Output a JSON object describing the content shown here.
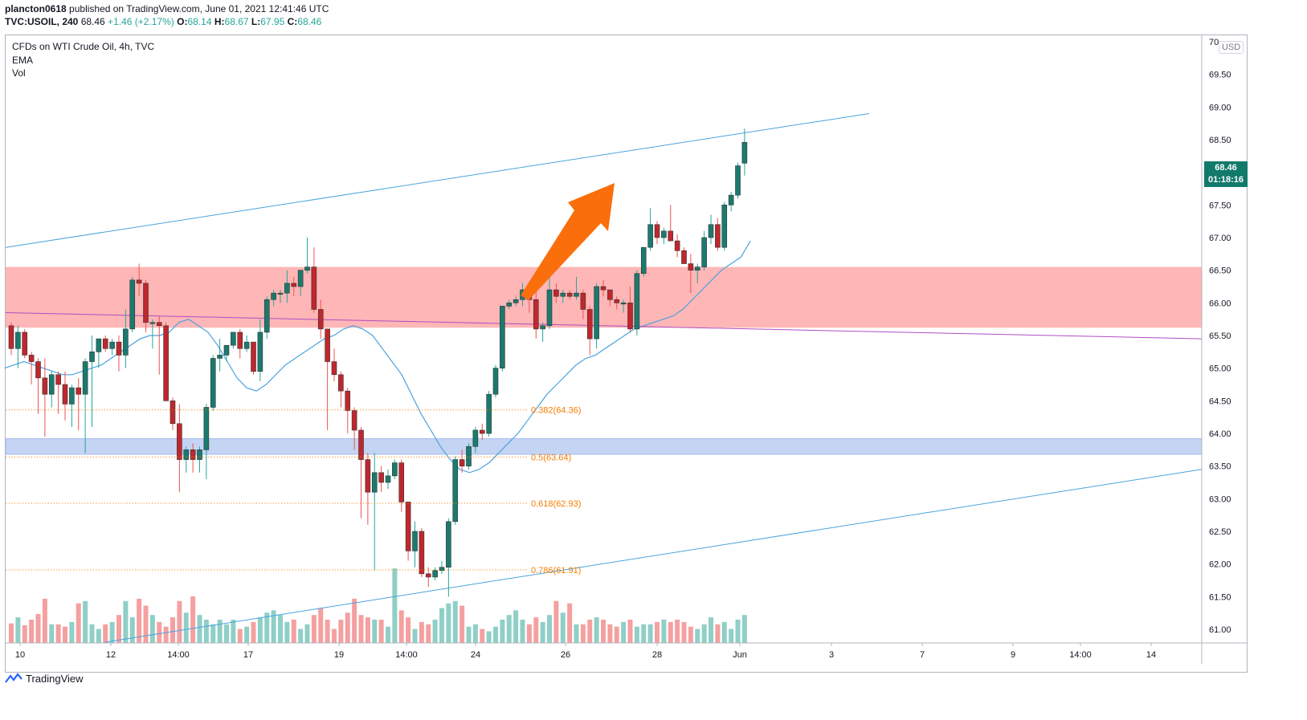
{
  "header": {
    "publisher": "plancton0618",
    "published_text": "published on TradingView.com, June 01, 2021 12:41:46 UTC",
    "symbol": "TVC:USOIL, 240",
    "last": "68.46",
    "change": "+1.46 (+2.17%)",
    "o_label": "O:",
    "o": "68.14",
    "h_label": "H:",
    "h": "68.67",
    "l_label": "L:",
    "l": "67.95",
    "c_label": "C:",
    "c": "68.46"
  },
  "legend": {
    "title": "CFDs on WTI Crude Oil, 4h, TVC",
    "ema": "EMA",
    "vol": "Vol"
  },
  "currency": "USD",
  "badge": {
    "price": "68.46",
    "countdown": "01:18:16"
  },
  "footer": {
    "brand": "TradingView"
  },
  "colors": {
    "up": "#26a69a",
    "down": "#ef5350",
    "up_vol": "#8fcfc7",
    "down_vol": "#f5a0a0",
    "channel": "#4aa3df",
    "resistance_zone": "#ffb6b6",
    "support_zone": "#c4d4f3",
    "ema": "#4aa3df",
    "trendline": "#b04dc4",
    "fib": "#f57c00",
    "arrow": "#fa6f0c"
  },
  "chart_data": {
    "type": "candlestick",
    "y_axis": {
      "range": [
        60.8,
        70.1
      ],
      "ticks": [
        "70.00",
        "69.50",
        "69.00",
        "68.50",
        "68.00",
        "67.50",
        "67.00",
        "66.50",
        "66.00",
        "65.50",
        "65.00",
        "64.50",
        "64.00",
        "63.50",
        "63.00",
        "62.50",
        "62.00",
        "61.50",
        "61.00"
      ],
      "top_label_partial": "70"
    },
    "x_axis": {
      "ticks": [
        "10",
        "12",
        "14:00",
        "17",
        "19",
        "14:00",
        "24",
        "26",
        "28",
        "Jun",
        "3",
        "7",
        "9",
        "14:00",
        "14"
      ]
    },
    "candles": [
      [
        65.65,
        65.7,
        65.2,
        65.3
      ],
      [
        65.3,
        65.65,
        65.0,
        65.55
      ],
      [
        65.55,
        65.6,
        65.15,
        65.2
      ],
      [
        65.2,
        65.25,
        64.75,
        65.1
      ],
      [
        65.1,
        65.15,
        64.3,
        64.85
      ],
      [
        64.85,
        65.15,
        63.95,
        64.6
      ],
      [
        64.6,
        64.95,
        64.4,
        64.9
      ],
      [
        64.9,
        64.95,
        64.3,
        64.75
      ],
      [
        64.75,
        64.95,
        64.2,
        64.45
      ],
      [
        64.45,
        64.75,
        64.1,
        64.7
      ],
      [
        64.7,
        64.85,
        64.05,
        64.6
      ],
      [
        64.6,
        65.15,
        63.7,
        65.1
      ],
      [
        65.1,
        65.5,
        64.1,
        65.25
      ],
      [
        65.25,
        65.45,
        65.0,
        65.45
      ],
      [
        65.45,
        65.5,
        65.25,
        65.3
      ],
      [
        65.3,
        65.45,
        65.2,
        65.4
      ],
      [
        65.4,
        65.5,
        64.95,
        65.2
      ],
      [
        65.2,
        65.9,
        65.0,
        65.6
      ],
      [
        65.6,
        66.4,
        65.55,
        66.35
      ],
      [
        66.35,
        66.6,
        66.1,
        66.3
      ],
      [
        66.3,
        66.35,
        65.55,
        65.7
      ],
      [
        65.7,
        65.75,
        65.3,
        65.7
      ],
      [
        65.7,
        65.8,
        64.9,
        65.65
      ],
      [
        65.65,
        65.7,
        64.5,
        64.5
      ],
      [
        64.5,
        64.55,
        64.05,
        64.15
      ],
      [
        64.15,
        64.45,
        63.1,
        63.6
      ],
      [
        63.6,
        63.8,
        63.4,
        63.75
      ],
      [
        63.75,
        63.85,
        63.4,
        63.6
      ],
      [
        63.6,
        63.8,
        63.4,
        63.75
      ],
      [
        63.75,
        64.45,
        63.3,
        64.4
      ],
      [
        64.4,
        65.2,
        64.35,
        65.15
      ],
      [
        65.15,
        65.45,
        64.95,
        65.2
      ],
      [
        65.2,
        65.35,
        65.1,
        65.35
      ],
      [
        65.35,
        65.55,
        65.3,
        65.55
      ],
      [
        65.55,
        65.6,
        65.15,
        65.3
      ],
      [
        65.3,
        65.5,
        65.25,
        65.4
      ],
      [
        65.4,
        65.4,
        64.9,
        64.95
      ],
      [
        64.95,
        65.75,
        64.8,
        65.55
      ],
      [
        65.55,
        66.1,
        65.45,
        66.05
      ],
      [
        66.05,
        66.2,
        65.95,
        66.15
      ],
      [
        66.15,
        66.2,
        66.0,
        66.15
      ],
      [
        66.15,
        66.5,
        66.0,
        66.3
      ],
      [
        66.3,
        66.4,
        66.1,
        66.25
      ],
      [
        66.25,
        66.45,
        66.1,
        66.5
      ],
      [
        66.5,
        67.0,
        66.45,
        66.55
      ],
      [
        66.55,
        66.85,
        65.85,
        65.9
      ],
      [
        65.9,
        66.05,
        65.45,
        65.6
      ],
      [
        65.6,
        65.6,
        64.05,
        65.1
      ],
      [
        65.1,
        65.3,
        64.8,
        64.9
      ],
      [
        64.9,
        64.95,
        64.4,
        64.65
      ],
      [
        64.65,
        64.7,
        64.0,
        64.35
      ],
      [
        64.35,
        64.4,
        63.75,
        64.05
      ],
      [
        64.05,
        64.1,
        62.7,
        63.6
      ],
      [
        63.6,
        63.7,
        62.6,
        63.1
      ],
      [
        63.1,
        63.7,
        61.9,
        63.4
      ],
      [
        63.4,
        63.5,
        63.1,
        63.25
      ],
      [
        63.25,
        63.45,
        63.15,
        63.35
      ],
      [
        63.35,
        63.6,
        63.3,
        63.55
      ],
      [
        63.55,
        63.6,
        62.8,
        62.95
      ],
      [
        62.95,
        62.95,
        62.05,
        62.2
      ],
      [
        62.2,
        62.65,
        61.95,
        62.5
      ],
      [
        62.5,
        62.55,
        61.8,
        61.85
      ],
      [
        61.85,
        61.95,
        61.65,
        61.8
      ],
      [
        61.8,
        61.95,
        61.75,
        61.9
      ],
      [
        61.9,
        62.05,
        61.85,
        61.95
      ],
      [
        61.95,
        62.7,
        61.5,
        62.65
      ],
      [
        62.65,
        63.65,
        62.6,
        63.6
      ],
      [
        63.6,
        63.75,
        63.4,
        63.5
      ],
      [
        63.5,
        63.85,
        63.45,
        63.8
      ],
      [
        63.8,
        64.1,
        63.7,
        64.05
      ],
      [
        64.05,
        64.15,
        63.9,
        64.0
      ],
      [
        64.0,
        64.65,
        63.95,
        64.6
      ],
      [
        64.6,
        65.05,
        64.55,
        65.0
      ],
      [
        65.0,
        65.95,
        64.95,
        65.95
      ],
      [
        65.95,
        66.05,
        65.9,
        66.0
      ],
      [
        66.0,
        66.1,
        65.95,
        66.05
      ],
      [
        66.05,
        66.3,
        65.95,
        66.2
      ],
      [
        66.2,
        66.3,
        65.85,
        66.05
      ],
      [
        66.05,
        66.2,
        65.45,
        65.6
      ],
      [
        65.6,
        65.7,
        65.4,
        65.65
      ],
      [
        65.65,
        66.5,
        65.6,
        66.2
      ],
      [
        66.2,
        66.3,
        66.0,
        66.1
      ],
      [
        66.1,
        66.2,
        66.0,
        66.15
      ],
      [
        66.15,
        66.2,
        66.05,
        66.1
      ],
      [
        66.1,
        66.4,
        66.05,
        66.15
      ],
      [
        66.15,
        66.2,
        65.75,
        65.9
      ],
      [
        65.9,
        65.95,
        65.2,
        65.45
      ],
      [
        65.45,
        66.3,
        65.3,
        66.25
      ],
      [
        66.25,
        66.35,
        66.1,
        66.2
      ],
      [
        66.2,
        66.2,
        65.95,
        66.05
      ],
      [
        66.05,
        66.1,
        65.9,
        66.0
      ],
      [
        66.0,
        66.05,
        65.85,
        66.0
      ],
      [
        66.0,
        66.25,
        65.55,
        65.6
      ],
      [
        65.6,
        66.5,
        65.5,
        66.45
      ],
      [
        66.45,
        66.85,
        66.4,
        66.85
      ],
      [
        66.85,
        67.45,
        66.8,
        67.2
      ],
      [
        67.2,
        67.25,
        66.9,
        67.0
      ],
      [
        67.0,
        67.15,
        66.9,
        67.1
      ],
      [
        67.1,
        67.5,
        66.95,
        66.95
      ],
      [
        66.95,
        67.05,
        66.7,
        66.8
      ],
      [
        66.8,
        66.85,
        66.6,
        66.6
      ],
      [
        66.6,
        66.75,
        66.15,
        66.5
      ],
      [
        66.5,
        66.6,
        66.3,
        66.55
      ],
      [
        66.55,
        67.1,
        66.5,
        67.0
      ],
      [
        67.0,
        67.35,
        66.9,
        67.2
      ],
      [
        67.2,
        67.3,
        66.8,
        66.85
      ],
      [
        66.85,
        67.55,
        66.8,
        67.5
      ],
      [
        67.5,
        67.7,
        67.4,
        67.65
      ],
      [
        67.65,
        68.15,
        67.6,
        68.1
      ],
      [
        68.14,
        68.67,
        67.95,
        68.46
      ]
    ],
    "volume_heights": [
      0.42,
      0.55,
      0.38,
      0.5,
      0.62,
      0.95,
      0.4,
      0.4,
      0.35,
      0.45,
      0.85,
      0.9,
      0.4,
      0.3,
      0.4,
      0.45,
      0.6,
      0.9,
      0.55,
      0.95,
      0.8,
      0.6,
      0.45,
      0.35,
      0.55,
      0.9,
      0.65,
      1.0,
      0.6,
      0.5,
      0.4,
      0.5,
      0.4,
      0.5,
      0.3,
      0.35,
      0.45,
      0.55,
      0.65,
      0.7,
      0.6,
      0.45,
      0.5,
      0.3,
      0.4,
      0.6,
      0.75,
      0.5,
      0.3,
      0.5,
      0.65,
      0.95,
      0.6,
      0.55,
      0.5,
      0.5,
      0.35,
      1.6,
      0.7,
      0.55,
      0.3,
      0.45,
      0.4,
      0.5,
      0.75,
      0.85,
      0.9,
      0.8,
      0.35,
      0.4,
      0.3,
      0.25,
      0.35,
      0.5,
      0.6,
      0.7,
      0.5,
      0.4,
      0.55,
      0.45,
      0.6,
      0.9,
      0.65,
      0.85,
      0.4,
      0.4,
      0.5,
      0.55,
      0.5,
      0.4,
      0.35,
      0.45,
      0.5,
      0.35,
      0.4,
      0.4,
      0.45,
      0.5,
      0.45,
      0.5,
      0.45,
      0.35,
      0.3,
      0.4,
      0.55,
      0.4,
      0.45,
      0.3,
      0.5,
      0.6,
      0.7,
      0.55
    ],
    "ema": [
      65.0,
      65.05,
      65.1,
      65.05,
      65.0,
      64.95,
      64.9,
      64.9,
      64.95,
      65.0,
      65.05,
      65.15,
      65.25,
      65.35,
      65.45,
      65.5,
      65.5,
      65.55,
      65.7,
      65.75,
      65.65,
      65.55,
      65.35,
      65.1,
      64.85,
      64.7,
      64.65,
      64.75,
      64.9,
      65.05,
      65.15,
      65.25,
      65.35,
      65.45,
      65.5,
      65.6,
      65.65,
      65.6,
      65.5,
      65.3,
      65.1,
      64.9,
      64.6,
      64.3,
      64.05,
      63.8,
      63.6,
      63.45,
      63.4,
      63.45,
      63.55,
      63.7,
      63.85,
      64.0,
      64.2,
      64.4,
      64.6,
      64.75,
      64.9,
      65.05,
      65.15,
      65.2,
      65.3,
      65.4,
      65.5,
      65.6,
      65.65,
      65.7,
      65.75,
      65.8,
      65.9,
      66.05,
      66.2,
      66.35,
      66.5,
      66.6,
      66.7,
      66.95
    ],
    "channel_upper": [
      [
        66.85,
        0
      ],
      [
        68.9,
        1
      ]
    ],
    "channel_lower": [
      [
        60.8,
        0
      ],
      [
        63.45,
        1
      ]
    ],
    "trendline": [
      [
        65.85,
        0
      ],
      [
        65.45,
        1
      ]
    ],
    "resistance_zone": [
      65.62,
      66.55
    ],
    "support_zone": [
      63.68,
      63.92
    ],
    "fib_levels": [
      {
        "label": "0.382(64.36)",
        "value": 64.36
      },
      {
        "label": "0.5(63.64)",
        "value": 63.64
      },
      {
        "label": "0.618(62.93)",
        "value": 62.93
      },
      {
        "label": "0.786(61.91)",
        "value": 61.91
      }
    ]
  }
}
